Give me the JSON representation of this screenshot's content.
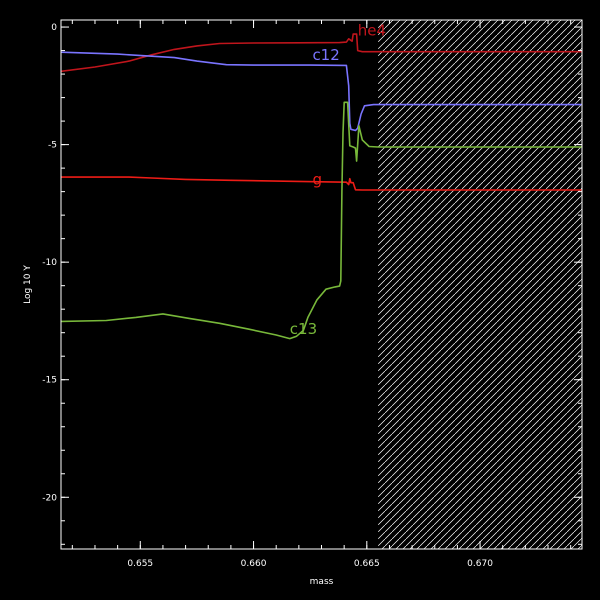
{
  "chart_data": {
    "type": "line",
    "xlabel": "mass",
    "ylabel": "Log 10 Y",
    "xlim": [
      0.6515,
      0.6745
    ],
    "ylim": [
      -22.2,
      0.3
    ],
    "xticks": [
      0.655,
      0.66,
      0.665,
      0.67
    ],
    "xtick_labels": [
      "0.655",
      "0.660",
      "0.665",
      "0.670"
    ],
    "yticks": [
      0,
      -5,
      -10,
      -15,
      -20
    ],
    "ytick_labels": [
      "0",
      "-5",
      "-10",
      "-15",
      "-20"
    ],
    "background": "#000000",
    "axis_color": "#ffffff",
    "hatched_region": {
      "x": [
        0.6655,
        0.6745
      ],
      "color": "#ffffff"
    },
    "series": [
      {
        "name": "he4",
        "color": "#c0151c",
        "label": {
          "x": 0.6646,
          "y": -0.35
        },
        "points": [
          [
            0.6515,
            -1.88
          ],
          [
            0.653,
            -1.7
          ],
          [
            0.6545,
            -1.45
          ],
          [
            0.6555,
            -1.18
          ],
          [
            0.6565,
            -0.95
          ],
          [
            0.6575,
            -0.8
          ],
          [
            0.6585,
            -0.7
          ],
          [
            0.66,
            -0.68
          ],
          [
            0.662,
            -0.67
          ],
          [
            0.6638,
            -0.66
          ],
          [
            0.6641,
            -0.64
          ],
          [
            0.6642,
            -0.5
          ],
          [
            0.66435,
            -0.6
          ],
          [
            0.6644,
            -0.3
          ],
          [
            0.66455,
            -0.3
          ],
          [
            0.6646,
            -1.0
          ],
          [
            0.6648,
            -1.05
          ],
          [
            0.6655,
            -1.05
          ],
          [
            0.667,
            -1.05
          ],
          [
            0.6745,
            -1.05
          ]
        ]
      },
      {
        "name": "c12",
        "color": "#7a74ff",
        "label": {
          "x": 0.6626,
          "y": -1.4
        },
        "points": [
          [
            0.6515,
            -1.07
          ],
          [
            0.654,
            -1.15
          ],
          [
            0.6565,
            -1.3
          ],
          [
            0.6575,
            -1.45
          ],
          [
            0.6588,
            -1.6
          ],
          [
            0.66,
            -1.62
          ],
          [
            0.6625,
            -1.62
          ],
          [
            0.6641,
            -1.63
          ],
          [
            0.6642,
            -2.5
          ],
          [
            0.66425,
            -4.1
          ],
          [
            0.6643,
            -4.35
          ],
          [
            0.6645,
            -4.4
          ],
          [
            0.6646,
            -4.3
          ],
          [
            0.66475,
            -3.7
          ],
          [
            0.6649,
            -3.35
          ],
          [
            0.6653,
            -3.3
          ],
          [
            0.666,
            -3.3
          ],
          [
            0.6745,
            -3.3
          ]
        ]
      },
      {
        "name": "g",
        "color": "#ee1c16",
        "label": {
          "x": 0.6626,
          "y": -6.7
        },
        "points": [
          [
            0.6515,
            -6.38
          ],
          [
            0.6545,
            -6.38
          ],
          [
            0.6555,
            -6.42
          ],
          [
            0.657,
            -6.48
          ],
          [
            0.659,
            -6.52
          ],
          [
            0.661,
            -6.55
          ],
          [
            0.663,
            -6.58
          ],
          [
            0.6641,
            -6.6
          ],
          [
            0.6642,
            -6.7
          ],
          [
            0.66425,
            -6.45
          ],
          [
            0.6643,
            -6.62
          ],
          [
            0.6644,
            -6.62
          ],
          [
            0.6645,
            -6.92
          ],
          [
            0.6648,
            -6.93
          ],
          [
            0.666,
            -6.93
          ],
          [
            0.6745,
            -6.93
          ]
        ]
      },
      {
        "name": "c13",
        "color": "#78b83a",
        "label": {
          "x": 0.6616,
          "y": -13.05
        },
        "points": [
          [
            0.6515,
            -12.52
          ],
          [
            0.6535,
            -12.48
          ],
          [
            0.6548,
            -12.35
          ],
          [
            0.656,
            -12.2
          ],
          [
            0.6572,
            -12.4
          ],
          [
            0.6585,
            -12.6
          ],
          [
            0.6598,
            -12.85
          ],
          [
            0.661,
            -13.1
          ],
          [
            0.6616,
            -13.25
          ],
          [
            0.6619,
            -13.15
          ],
          [
            0.6622,
            -12.9
          ],
          [
            0.6624,
            -12.35
          ],
          [
            0.6628,
            -11.6
          ],
          [
            0.6632,
            -11.15
          ],
          [
            0.6636,
            -11.05
          ],
          [
            0.6638,
            -11.02
          ],
          [
            0.66385,
            -10.8
          ],
          [
            0.6639,
            -7.0
          ],
          [
            0.66395,
            -4.5
          ],
          [
            0.664,
            -3.2
          ],
          [
            0.66415,
            -3.2
          ],
          [
            0.66425,
            -5.05
          ],
          [
            0.6644,
            -5.1
          ],
          [
            0.6645,
            -5.15
          ],
          [
            0.66455,
            -5.7
          ],
          [
            0.66465,
            -4.2
          ],
          [
            0.6648,
            -4.8
          ],
          [
            0.6651,
            -5.08
          ],
          [
            0.6655,
            -5.1
          ],
          [
            0.666,
            -5.1
          ],
          [
            0.6745,
            -5.1
          ]
        ]
      }
    ]
  }
}
